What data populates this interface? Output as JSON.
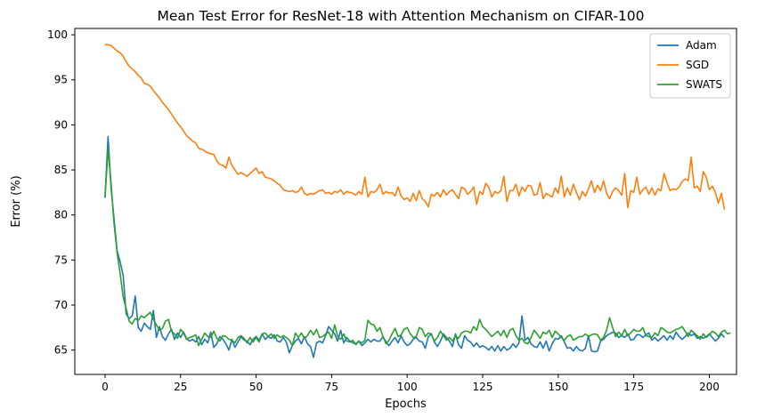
{
  "chart_data": {
    "type": "line",
    "title": "Mean Test Error for ResNet-18 with Attention Mechanism on CIFAR-100",
    "xlabel": "Epochs",
    "ylabel": "Error (%)",
    "xlim": [
      -10,
      209
    ],
    "ylim": [
      62.3,
      100.7
    ],
    "xticks": [
      0,
      25,
      50,
      75,
      100,
      125,
      150,
      175,
      200
    ],
    "yticks": [
      65,
      70,
      75,
      80,
      85,
      90,
      95,
      100
    ],
    "grid": false,
    "legend_position": "top-right",
    "x": {
      "start": 0,
      "end": 199,
      "step": 1
    },
    "series": [
      {
        "name": "Adam",
        "color": "#1f77b4",
        "values": [
          81.9,
          88.7,
          83.0,
          79.5,
          76.0,
          74.8,
          73.3,
          69.0,
          68.5,
          68.8,
          71.0,
          67.5,
          67.1,
          68.0,
          67.6,
          67.3,
          69.4,
          66.4,
          67.6,
          66.5,
          66.1,
          66.8,
          67.3,
          66.2,
          66.9,
          66.4,
          67.0,
          66.3,
          66.0,
          66.2,
          65.9,
          66.5,
          65.6,
          66.2,
          65.8,
          67.0,
          65.3,
          65.7,
          66.5,
          66.2,
          65.7,
          65.0,
          66.2,
          65.3,
          65.9,
          66.5,
          66.1,
          66.0,
          65.6,
          66.2,
          66.5,
          66.1,
          66.8,
          66.2,
          66.5,
          66.3,
          66.7,
          66.0,
          65.9,
          66.4,
          65.9,
          64.7,
          65.5,
          66.0,
          66.3,
          65.7,
          66.5,
          65.7,
          65.4,
          64.2,
          65.8,
          66.0,
          65.8,
          66.6,
          67.6,
          67.2,
          66.8,
          66.0,
          67.2,
          65.8,
          66.4,
          66.0,
          65.8,
          65.7,
          66.0,
          65.5,
          65.8,
          66.2,
          65.9,
          66.2,
          66.0,
          66.0,
          66.5,
          65.9,
          65.5,
          66.0,
          66.4,
          65.8,
          66.6,
          65.9,
          65.5,
          65.7,
          66.2,
          66.4,
          66.0,
          65.9,
          65.2,
          66.5,
          66.8,
          65.9,
          65.4,
          66.0,
          66.8,
          66.4,
          66.0,
          65.4,
          66.8,
          65.6,
          65.2,
          66.6,
          66.1,
          65.9,
          65.4,
          65.8,
          65.3,
          65.5,
          65.3,
          65.0,
          65.4,
          64.9,
          65.5,
          64.9,
          65.4,
          65.0,
          65.2,
          65.7,
          65.3,
          65.8,
          68.8,
          66.1,
          66.4,
          65.7,
          65.4,
          65.3,
          65.9,
          65.2,
          66.0,
          64.9,
          65.7,
          66.3,
          66.2,
          66.6,
          65.9,
          65.2,
          65.3,
          64.9,
          65.4,
          65.0,
          64.9,
          65.2,
          66.6,
          64.9,
          64.8,
          64.9,
          66.0,
          66.2,
          66.6,
          66.8,
          67.0,
          66.9,
          66.4,
          66.6,
          66.4,
          66.8,
          66.1,
          66.2,
          66.7,
          66.7,
          66.4,
          66.7,
          66.9,
          66.1,
          66.4,
          66.0,
          66.3,
          66.6,
          66.1,
          66.6,
          66.2,
          67.0,
          66.5,
          66.2,
          66.5,
          66.9,
          66.6,
          66.8,
          66.3,
          66.5,
          66.3,
          66.5,
          66.8,
          66.4,
          66.0,
          66.3,
          66.8,
          66.4
        ]
      },
      {
        "name": "SGD",
        "color": "#ff7f0e",
        "values": [
          98.9,
          98.9,
          98.8,
          98.5,
          98.2,
          98.0,
          97.6,
          97.0,
          96.5,
          96.2,
          95.9,
          95.5,
          95.2,
          94.6,
          94.5,
          94.3,
          93.8,
          93.4,
          93.0,
          92.5,
          92.1,
          91.7,
          91.2,
          90.7,
          90.2,
          89.8,
          89.3,
          88.8,
          88.5,
          88.2,
          88.0,
          87.4,
          87.3,
          87.1,
          86.9,
          86.8,
          86.7,
          86.0,
          85.6,
          85.5,
          85.2,
          86.4,
          85.5,
          85.0,
          84.5,
          84.7,
          84.5,
          84.3,
          84.6,
          84.9,
          85.2,
          84.6,
          84.8,
          84.2,
          84.1,
          84.0,
          83.8,
          83.5,
          83.3,
          82.8,
          82.7,
          82.6,
          82.7,
          82.5,
          82.6,
          83.1,
          82.4,
          82.2,
          82.4,
          82.3,
          82.5,
          82.7,
          82.8,
          82.4,
          82.5,
          82.3,
          82.6,
          82.5,
          82.8,
          82.3,
          82.6,
          82.5,
          82.4,
          82.2,
          82.6,
          82.3,
          84.2,
          82.0,
          82.6,
          82.5,
          82.8,
          83.4,
          82.3,
          82.6,
          82.4,
          82.5,
          82.1,
          83.1,
          82.1,
          81.7,
          81.9,
          81.5,
          82.4,
          81.6,
          82.7,
          81.8,
          81.5,
          80.9,
          82.3,
          82.1,
          82.5,
          82.0,
          82.8,
          82.2,
          82.6,
          82.8,
          82.3,
          81.8,
          83.1,
          82.9,
          82.3,
          82.6,
          83.1,
          81.2,
          82.6,
          82.3,
          83.5,
          83.1,
          82.0,
          82.6,
          82.4,
          82.7,
          84.3,
          81.5,
          82.7,
          82.7,
          83.4,
          82.1,
          83.1,
          82.6,
          83.3,
          83.2,
          82.2,
          82.3,
          83.6,
          81.8,
          82.4,
          82.2,
          82.0,
          83.0,
          82.4,
          84.3,
          82.0,
          83.0,
          82.2,
          83.4,
          82.5,
          81.7,
          82.6,
          82.1,
          82.9,
          83.8,
          82.5,
          83.3,
          82.7,
          83.8,
          82.4,
          81.8,
          82.6,
          83.0,
          82.7,
          82.2,
          84.6,
          80.8,
          82.7,
          82.5,
          84.2,
          82.3,
          82.8,
          83.1,
          82.3,
          83.0,
          82.2,
          82.9,
          82.7,
          84.6,
          83.6,
          82.7,
          82.9,
          82.8,
          83.1,
          83.7,
          84.0,
          83.8,
          86.4,
          83.0,
          83.2,
          82.6,
          84.8,
          84.2,
          82.8,
          83.2,
          82.5,
          81.3,
          82.4,
          80.6
        ]
      },
      {
        "name": "SWATS",
        "color": "#2ca02c",
        "values": [
          82.0,
          87.3,
          83.5,
          79.0,
          75.8,
          73.5,
          70.9,
          69.6,
          68.2,
          67.9,
          68.5,
          68.3,
          68.8,
          68.6,
          68.9,
          69.2,
          68.4,
          67.8,
          67.2,
          67.4,
          68.2,
          68.4,
          67.1,
          66.8,
          66.3,
          67.3,
          66.9,
          66.2,
          66.4,
          66.5,
          66.7,
          65.5,
          66.2,
          66.9,
          66.5,
          66.4,
          67.1,
          66.3,
          66.0,
          66.6,
          66.5,
          66.2,
          66.1,
          65.8,
          66.4,
          66.6,
          66.3,
          65.8,
          66.4,
          65.9,
          66.4,
          65.9,
          66.8,
          66.9,
          66.5,
          66.8,
          66.3,
          66.7,
          66.4,
          66.6,
          66.4,
          66.1,
          65.5,
          66.9,
          66.4,
          66.9,
          66.3,
          66.6,
          67.2,
          66.7,
          67.3,
          66.4,
          66.5,
          66.8,
          67.0,
          66.3,
          67.8,
          66.5,
          66.2,
          66.8,
          66.0,
          65.9,
          66.1,
          65.6,
          66.0,
          65.8,
          66.1,
          68.3,
          67.9,
          67.8,
          67.1,
          67.5,
          66.5,
          65.7,
          66.1,
          66.8,
          67.4,
          66.5,
          66.7,
          67.3,
          67.5,
          66.8,
          66.4,
          66.5,
          67.5,
          67.3,
          66.5,
          66.9,
          66.8,
          66.0,
          66.4,
          67.1,
          66.6,
          66.1,
          66.4,
          66.0,
          66.6,
          66.3,
          66.9,
          67.1,
          67.1,
          66.9,
          67.6,
          67.2,
          68.4,
          67.6,
          67.3,
          66.9,
          66.5,
          66.8,
          67.1,
          66.6,
          67.2,
          66.4,
          67.2,
          67.4,
          66.6,
          66.1,
          66.3,
          65.8,
          65.7,
          66.4,
          67.2,
          66.8,
          66.3,
          67.0,
          66.8,
          67.2,
          66.4,
          67.1,
          66.8,
          66.4,
          66.1,
          66.5,
          66.7,
          66.1,
          66.3,
          66.5,
          66.5,
          66.8,
          66.5,
          66.7,
          66.8,
          66.7,
          66.1,
          66.4,
          67.2,
          68.6,
          67.5,
          66.5,
          67.0,
          66.6,
          67.3,
          66.6,
          66.9,
          67.3,
          67.1,
          67.1,
          67.5,
          66.6,
          66.5,
          66.4,
          66.9,
          66.6,
          67.5,
          67.3,
          67.0,
          66.9,
          67.1,
          67.3,
          67.4,
          67.6,
          67.1,
          66.5,
          67.2,
          66.9,
          66.6,
          66.2,
          66.8,
          66.4,
          66.7,
          67.1,
          66.9,
          66.5,
          67.0,
          67.2,
          66.8,
          66.9
        ]
      }
    ]
  }
}
